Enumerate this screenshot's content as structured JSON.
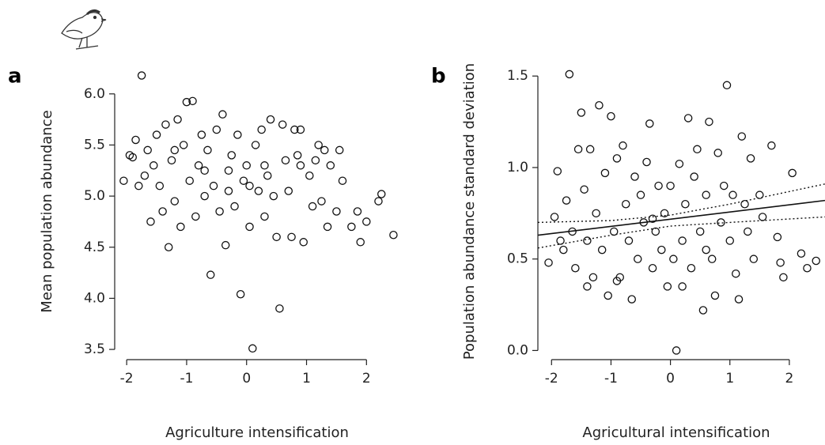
{
  "chart_data": [
    {
      "type": "scatter",
      "panel_label": "a",
      "x_label": "Agriculture intensification",
      "y_label": "Mean population abundance",
      "xlim": [
        -2.2,
        2.55
      ],
      "ylim": [
        3.4,
        6.3
      ],
      "xticks": [
        -2,
        -1,
        0,
        1,
        2
      ],
      "yticks": [
        {
          "value": 3.5,
          "label": "3.5"
        },
        {
          "value": 4,
          "label": "4.0"
        },
        {
          "value": 4.5,
          "label": "4.5"
        },
        {
          "value": 5,
          "label": "5.0"
        },
        {
          "value": 5.5,
          "label": "5.5"
        },
        {
          "value": 6,
          "label": "6.0"
        }
      ],
      "x": [
        -2.05,
        -1.9,
        -1.85,
        -1.8,
        -1.75,
        -1.7,
        -1.65,
        -1.6,
        -1.55,
        -1.5,
        -1.45,
        -1.4,
        -1.35,
        -1.3,
        -1.25,
        -1.2,
        -1.15,
        -1.1,
        -1.05,
        -1.0,
        -0.95,
        -0.9,
        -0.85,
        -0.8,
        -0.75,
        -0.7,
        -0.65,
        -0.6,
        -0.55,
        -0.5,
        -0.45,
        -0.4,
        -0.35,
        -0.3,
        -0.25,
        -0.2,
        -0.15,
        -0.1,
        -0.05,
        0.0,
        0.05,
        0.1,
        0.15,
        0.2,
        0.25,
        0.3,
        0.35,
        0.4,
        0.45,
        0.5,
        0.55,
        0.6,
        0.65,
        0.7,
        0.75,
        0.8,
        0.85,
        0.9,
        0.95,
        1.05,
        1.1,
        1.15,
        1.2,
        1.25,
        1.3,
        1.35,
        1.4,
        1.5,
        1.55,
        1.6,
        1.75,
        1.85,
        1.9,
        2.0,
        2.2,
        2.25,
        2.45,
        -1.95,
        -1.2,
        -0.7,
        0.05,
        0.3,
        -0.3,
        0.9
      ],
      "y": [
        5.15,
        5.38,
        5.55,
        5.1,
        6.18,
        5.2,
        5.45,
        4.75,
        5.3,
        5.6,
        5.1,
        4.85,
        5.7,
        4.5,
        5.35,
        4.95,
        5.75,
        4.7,
        5.5,
        5.92,
        5.15,
        5.93,
        4.8,
        5.3,
        5.6,
        5.0,
        5.45,
        4.23,
        5.1,
        5.65,
        4.85,
        5.8,
        4.52,
        5.25,
        5.4,
        4.9,
        5.6,
        4.04,
        5.15,
        5.3,
        4.7,
        3.51,
        5.5,
        5.05,
        5.65,
        4.8,
        5.2,
        5.75,
        5.0,
        4.6,
        3.9,
        5.7,
        5.35,
        5.05,
        4.6,
        5.65,
        5.4,
        5.3,
        4.55,
        5.2,
        4.9,
        5.35,
        5.5,
        4.95,
        5.45,
        4.7,
        5.3,
        4.85,
        5.45,
        5.15,
        4.7,
        4.85,
        4.55,
        4.75,
        4.95,
        5.02,
        4.62,
        5.4,
        5.45,
        5.25,
        5.1,
        5.3,
        5.05,
        5.65
      ]
    },
    {
      "type": "scatter",
      "panel_label": "b",
      "x_label": "Agricultural intensification",
      "y_label": "Population abundance standard deviation",
      "xlim": [
        -2.23,
        2.6
      ],
      "ylim": [
        -0.05,
        1.57
      ],
      "xticks": [
        -2,
        -1,
        0,
        1,
        2
      ],
      "yticks": [
        {
          "value": 0,
          "label": "0.0"
        },
        0.5,
        {
          "value": 1,
          "label": "1.0"
        },
        1.5
      ],
      "x": [
        -2.05,
        -1.95,
        -1.9,
        -1.85,
        -1.8,
        -1.75,
        -1.7,
        -1.65,
        -1.6,
        -1.55,
        -1.5,
        -1.45,
        -1.4,
        -1.35,
        -1.3,
        -1.25,
        -1.2,
        -1.15,
        -1.1,
        -1.05,
        -1.0,
        -0.95,
        -0.9,
        -0.85,
        -0.8,
        -0.75,
        -0.7,
        -0.65,
        -0.6,
        -0.55,
        -0.5,
        -0.45,
        -0.4,
        -0.35,
        -0.3,
        -0.25,
        -0.2,
        -0.15,
        -0.1,
        -0.05,
        0.0,
        0.05,
        0.1,
        0.15,
        0.2,
        0.25,
        0.3,
        0.35,
        0.4,
        0.45,
        0.5,
        0.55,
        0.6,
        0.65,
        0.7,
        0.75,
        0.8,
        0.85,
        0.9,
        0.95,
        1.0,
        1.05,
        1.1,
        1.15,
        1.2,
        1.25,
        1.3,
        1.35,
        1.4,
        1.5,
        1.55,
        1.7,
        1.8,
        1.85,
        1.9,
        2.05,
        2.2,
        2.3,
        2.45,
        -1.4,
        -0.9,
        0.2,
        0.6,
        -0.3
      ],
      "y": [
        0.48,
        0.73,
        0.98,
        0.6,
        0.55,
        0.82,
        1.51,
        0.65,
        0.45,
        1.1,
        1.3,
        0.88,
        0.6,
        1.1,
        0.4,
        0.75,
        1.34,
        0.55,
        0.97,
        0.3,
        1.28,
        0.65,
        1.05,
        0.4,
        1.12,
        0.8,
        0.6,
        0.28,
        0.95,
        0.5,
        0.85,
        0.7,
        1.03,
        1.24,
        0.45,
        0.65,
        0.9,
        0.55,
        0.75,
        0.35,
        0.9,
        0.5,
        0.0,
        1.02,
        0.6,
        0.8,
        1.27,
        0.45,
        0.95,
        1.1,
        0.65,
        0.22,
        0.85,
        1.25,
        0.5,
        0.3,
        1.08,
        0.7,
        0.9,
        1.45,
        0.6,
        0.85,
        0.42,
        0.28,
        1.17,
        0.8,
        0.65,
        1.05,
        0.5,
        0.85,
        0.73,
        1.12,
        0.62,
        0.48,
        0.4,
        0.97,
        0.53,
        0.45,
        0.49,
        0.35,
        0.38,
        0.35,
        0.55,
        0.72
      ],
      "fit": {
        "x": [
          -2.23,
          2.6
        ],
        "y": [
          0.63,
          0.82
        ]
      },
      "ci_upper": {
        "x": [
          -2.23,
          -1,
          0,
          1,
          2.6
        ],
        "y": [
          0.7,
          0.71,
          0.74,
          0.8,
          0.91
        ]
      },
      "ci_lower": {
        "x": [
          -2.23,
          -1,
          0,
          1,
          2.6
        ],
        "y": [
          0.56,
          0.63,
          0.68,
          0.7,
          0.73
        ]
      }
    }
  ]
}
